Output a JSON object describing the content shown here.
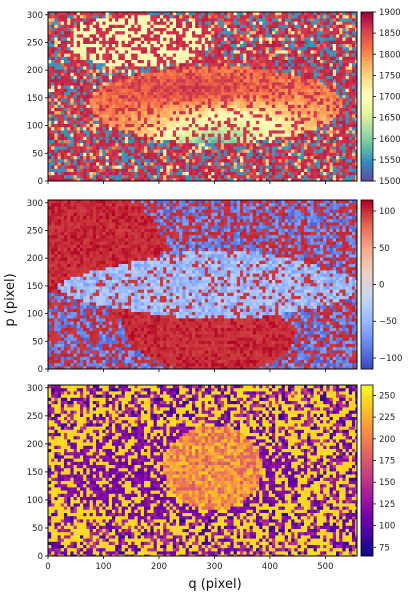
{
  "chart_data": [
    {
      "type": "heatmap",
      "panel": "top",
      "colormap": "spectral_r",
      "x_ticks": [
        0,
        100,
        200,
        300,
        400,
        500
      ],
      "y_ticks": [
        0,
        50,
        100,
        150,
        200,
        250,
        300
      ],
      "xlim": [
        0,
        557
      ],
      "ylim": [
        0,
        305
      ],
      "colorbar_ticks": [
        1500,
        1550,
        1600,
        1650,
        1700,
        1750,
        1800,
        1850,
        1900
      ],
      "colorbar_range": [
        1500,
        1900
      ],
      "show_xtick_labels": false
    },
    {
      "type": "heatmap",
      "panel": "middle",
      "colormap": "coolwarm",
      "x_ticks": [
        0,
        100,
        200,
        300,
        400,
        500
      ],
      "y_ticks": [
        0,
        50,
        100,
        150,
        200,
        250,
        300
      ],
      "xlim": [
        0,
        557
      ],
      "ylim": [
        0,
        305
      ],
      "colorbar_ticks": [
        -100,
        -50,
        0,
        50,
        100
      ],
      "colorbar_range": [
        -115,
        115
      ],
      "show_xtick_labels": false
    },
    {
      "type": "heatmap",
      "panel": "bottom",
      "colormap": "plasma",
      "x_ticks": [
        0,
        100,
        200,
        300,
        400,
        500
      ],
      "y_ticks": [
        0,
        50,
        100,
        150,
        200,
        250,
        300
      ],
      "xlim": [
        0,
        557
      ],
      "ylim": [
        0,
        305
      ],
      "colorbar_ticks": [
        75,
        100,
        125,
        150,
        175,
        200,
        225,
        250
      ],
      "colorbar_range": [
        65,
        262
      ],
      "show_xtick_labels": true
    }
  ],
  "xlabel": "q (pixel)",
  "ylabel": "p (pixel)"
}
